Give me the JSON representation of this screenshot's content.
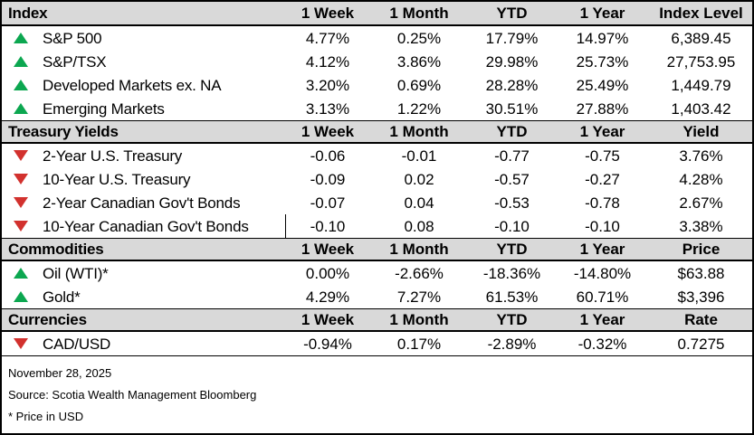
{
  "colors": {
    "up_triangle": "#0ca750",
    "down_triangle": "#d2312e",
    "section_header_bg": "#d9d9d9",
    "border": "#000000"
  },
  "sections": [
    {
      "title": "Index",
      "columns": [
        "1 Week",
        "1 Month",
        "YTD",
        "1 Year",
        "Index Level"
      ],
      "rows": [
        {
          "dir": "up",
          "icon": "triangle-up-icon",
          "label": "S&P 500",
          "v": [
            "4.77%",
            "0.25%",
            "17.79%",
            "14.97%",
            "6,389.45"
          ]
        },
        {
          "dir": "up",
          "icon": "triangle-up-icon",
          "label": "S&P/TSX",
          "v": [
            "4.12%",
            "3.86%",
            "29.98%",
            "25.73%",
            "27,753.95"
          ]
        },
        {
          "dir": "up",
          "icon": "triangle-up-icon",
          "label": "Developed Markets ex. NA",
          "v": [
            "3.20%",
            "0.69%",
            "28.28%",
            "25.49%",
            "1,449.79"
          ]
        },
        {
          "dir": "up",
          "icon": "triangle-up-icon",
          "label": "Emerging Markets",
          "v": [
            "3.13%",
            "1.22%",
            "30.51%",
            "27.88%",
            "1,403.42"
          ]
        }
      ]
    },
    {
      "title": "Treasury Yields",
      "columns": [
        "1 Week",
        "1 Month",
        "YTD",
        "1 Year",
        "Yield"
      ],
      "rows": [
        {
          "dir": "down",
          "icon": "triangle-down-icon",
          "label": "2-Year U.S. Treasury",
          "v": [
            "-0.06",
            "-0.01",
            "-0.77",
            "-0.75",
            "3.76%"
          ]
        },
        {
          "dir": "down",
          "icon": "triangle-down-icon",
          "label": "10-Year U.S. Treasury",
          "v": [
            "-0.09",
            "0.02",
            "-0.57",
            "-0.27",
            "4.28%"
          ]
        },
        {
          "dir": "down",
          "icon": "triangle-down-icon",
          "label": "2-Year Canadian Gov't Bonds",
          "v": [
            "-0.07",
            "0.04",
            "-0.53",
            "-0.78",
            "2.67%"
          ]
        },
        {
          "dir": "down",
          "icon": "triangle-down-icon",
          "label": "10-Year Canadian Gov't Bonds",
          "v": [
            "-0.10",
            "0.08",
            "-0.10",
            "-0.10",
            "3.38%"
          ]
        }
      ]
    },
    {
      "title": "Commodities",
      "columns": [
        "1 Week",
        "1 Month",
        "YTD",
        "1 Year",
        "Price"
      ],
      "rows": [
        {
          "dir": "up",
          "icon": "triangle-up-icon",
          "label": "Oil (WTI)*",
          "v": [
            "0.00%",
            "-2.66%",
            "-18.36%",
            "-14.80%",
            "$63.88"
          ]
        },
        {
          "dir": "up",
          "icon": "triangle-up-icon",
          "label": "Gold*",
          "v": [
            "4.29%",
            "7.27%",
            "61.53%",
            "60.71%",
            "$3,396"
          ]
        }
      ]
    },
    {
      "title": "Currencies",
      "columns": [
        "1 Week",
        "1 Month",
        "YTD",
        "1 Year",
        "Rate"
      ],
      "rows": [
        {
          "dir": "down",
          "icon": "triangle-down-icon",
          "label": "CAD/USD",
          "v": [
            "-0.94%",
            "0.17%",
            "-2.89%",
            "-0.32%",
            "0.7275"
          ]
        }
      ]
    }
  ],
  "footer": {
    "date": "November 28, 2025",
    "source": "Source: Scotia Wealth Management Bloomberg",
    "note": "* Price in USD"
  }
}
